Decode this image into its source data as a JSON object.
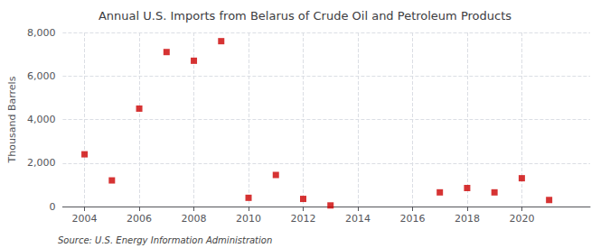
{
  "chart_data": {
    "type": "scatter",
    "title": "Annual U.S. Imports from Belarus of Crude Oil and Petroleum Products",
    "ylabel": "Thousand Barrels",
    "annotation": "Source: U.S. Energy Information Administration",
    "x": [
      2004,
      2005,
      2006,
      2007,
      2008,
      2009,
      2010,
      2011,
      2012,
      2013,
      2017,
      2018,
      2019,
      2020,
      2021
    ],
    "values": [
      2400,
      1200,
      4500,
      7100,
      6700,
      7600,
      400,
      1450,
      350,
      50,
      650,
      850,
      650,
      1300,
      300
    ],
    "color": "#cc0000",
    "marker": "square",
    "xlim": [
      2003.2,
      2022.5
    ],
    "xticks": [
      2004,
      2006,
      2008,
      2010,
      2012,
      2014,
      2016,
      2018,
      2020
    ],
    "ylim": [
      0,
      8000
    ],
    "yticks": [
      0,
      {
        "value": 2000,
        "label": "2,000"
      },
      {
        "value": 4000,
        "label": "4,000"
      },
      {
        "value": 6000,
        "label": "6,000"
      },
      {
        "value": 8000,
        "label": "8,000"
      }
    ],
    "grid": true
  }
}
